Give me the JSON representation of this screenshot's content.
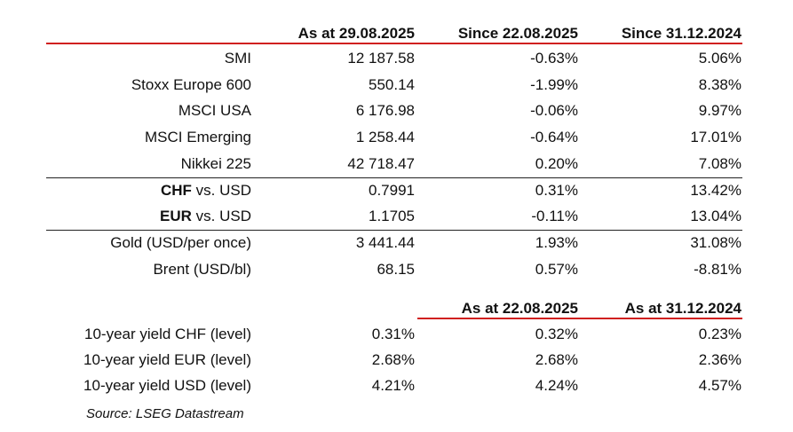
{
  "header": {
    "col1": "As at 29.08.2025",
    "col2": "Since 22.08.2025",
    "col3": "Since 31.12.2024"
  },
  "indices": [
    {
      "name": "SMI",
      "value": "12 187.58",
      "since_week": "-0.63%",
      "since_year": "5.06%"
    },
    {
      "name": "Stoxx Europe 600",
      "value": "550.14",
      "since_week": "-1.99%",
      "since_year": "8.38%"
    },
    {
      "name": "MSCI USA",
      "value": "6 176.98",
      "since_week": "-0.06%",
      "since_year": "9.97%"
    },
    {
      "name": "MSCI Emerging",
      "value": "1 258.44",
      "since_week": "-0.64%",
      "since_year": "17.01%"
    },
    {
      "name": "Nikkei 225",
      "value": "42 718.47",
      "since_week": "0.20%",
      "since_year": "7.08%"
    }
  ],
  "fx": [
    {
      "name_bold": "CHF",
      "name_rest": " vs. USD",
      "value": "0.7991",
      "since_week": "0.31%",
      "since_year": "13.42%"
    },
    {
      "name_bold": "EUR",
      "name_rest": " vs. USD",
      "value": "1.1705",
      "since_week": "-0.11%",
      "since_year": "13.04%"
    }
  ],
  "commodities": [
    {
      "name": "Gold (USD/per once)",
      "value": "3 441.44",
      "since_week": "1.93%",
      "since_year": "31.08%"
    },
    {
      "name": "Brent (USD/bl)",
      "value": "68.15",
      "since_week": "0.57%",
      "since_year": "-8.81%"
    }
  ],
  "yields_header": {
    "col2": "As at 22.08.2025",
    "col3": "As at 31.12.2024"
  },
  "yields": [
    {
      "name": "10-year yield CHF (level)",
      "value": "0.31%",
      "prev_week": "0.32%",
      "prev_year": "0.23%"
    },
    {
      "name": "10-year yield EUR (level)",
      "value": "2.68%",
      "prev_week": "2.68%",
      "prev_year": "2.36%"
    },
    {
      "name": "10-year yield USD (level)",
      "value": "4.21%",
      "prev_week": "4.24%",
      "prev_year": "4.57%"
    }
  ],
  "source": "Source: LSEG Datastream",
  "colors": {
    "accent_red": "#d0201f",
    "rule": "#222222"
  }
}
